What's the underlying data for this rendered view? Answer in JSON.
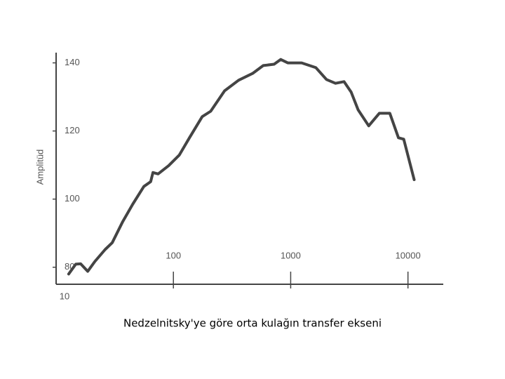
{
  "chart_data": {
    "type": "line",
    "caption": "Nedzelnitsky'ye göre orta kulağın transfer ekseni",
    "y_label": "Amplitüd",
    "x_scale": "log",
    "xlim": [
      10,
      20000
    ],
    "xticks": [
      10,
      100,
      1000,
      10000
    ],
    "ylim": [
      75,
      143
    ],
    "yticks": [
      80,
      100,
      120,
      140
    ],
    "grid": false,
    "series": [
      {
        "color": "#444444",
        "x": [
          12.8,
          14.7,
          16.2,
          18.6,
          21.4,
          26.2,
          30.1,
          37,
          45,
          56,
          64,
          67,
          74,
          91,
          112,
          137,
          176,
          208,
          273,
          360,
          474,
          583,
          722,
          822,
          944,
          1240,
          1640,
          2020,
          2410,
          2850,
          3280,
          3760,
          4630,
          5700,
          7000,
          8300,
          9200,
          11300
        ],
        "values": [
          78,
          80.9,
          81,
          78.8,
          81.7,
          85.2,
          87.2,
          93.4,
          98.5,
          103.7,
          105.1,
          107.8,
          107.4,
          109.8,
          112.9,
          118,
          124.2,
          125.8,
          131.8,
          134.9,
          136.9,
          139.2,
          139.6,
          141,
          140,
          140,
          138.6,
          135.1,
          134,
          134.5,
          131.4,
          126.2,
          121.5,
          125.2,
          125.2,
          118,
          117.6,
          105.7
        ]
      }
    ]
  }
}
